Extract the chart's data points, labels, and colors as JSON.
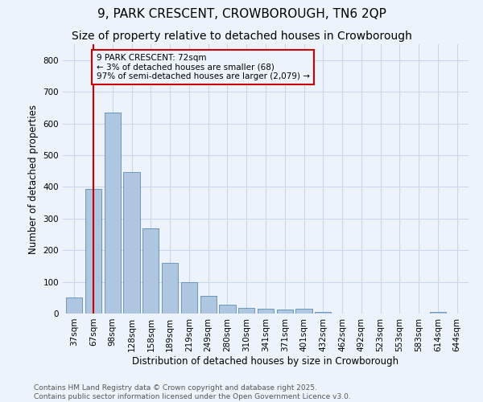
{
  "title1": "9, PARK CRESCENT, CROWBOROUGH, TN6 2QP",
  "title2": "Size of property relative to detached houses in Crowborough",
  "xlabel": "Distribution of detached houses by size in Crowborough",
  "ylabel": "Number of detached properties",
  "categories": [
    "37sqm",
    "67sqm",
    "98sqm",
    "128sqm",
    "158sqm",
    "189sqm",
    "219sqm",
    "249sqm",
    "280sqm",
    "310sqm",
    "341sqm",
    "371sqm",
    "401sqm",
    "432sqm",
    "462sqm",
    "492sqm",
    "523sqm",
    "553sqm",
    "583sqm",
    "614sqm",
    "644sqm"
  ],
  "values": [
    50,
    393,
    635,
    447,
    270,
    160,
    100,
    56,
    28,
    18,
    14,
    12,
    14,
    5,
    0,
    0,
    0,
    0,
    0,
    6,
    0
  ],
  "bar_color": "#aec6df",
  "bar_edge_color": "#5b8db8",
  "grid_color": "#c8d8ea",
  "background_color": "#edf3fb",
  "vline_x_index": 1,
  "vline_color": "#cc0000",
  "annotation_text": "9 PARK CRESCENT: 72sqm\n← 3% of detached houses are smaller (68)\n97% of semi-detached houses are larger (2,079) →",
  "annotation_box_edgecolor": "#cc0000",
  "ylim": [
    0,
    850
  ],
  "yticks": [
    0,
    100,
    200,
    300,
    400,
    500,
    600,
    700,
    800
  ],
  "footer_text": "Contains HM Land Registry data © Crown copyright and database right 2025.\nContains public sector information licensed under the Open Government Licence v3.0.",
  "title_fontsize": 11,
  "subtitle_fontsize": 10,
  "axis_label_fontsize": 8.5,
  "tick_fontsize": 7.5,
  "annotation_fontsize": 7.5,
  "footer_fontsize": 6.5
}
